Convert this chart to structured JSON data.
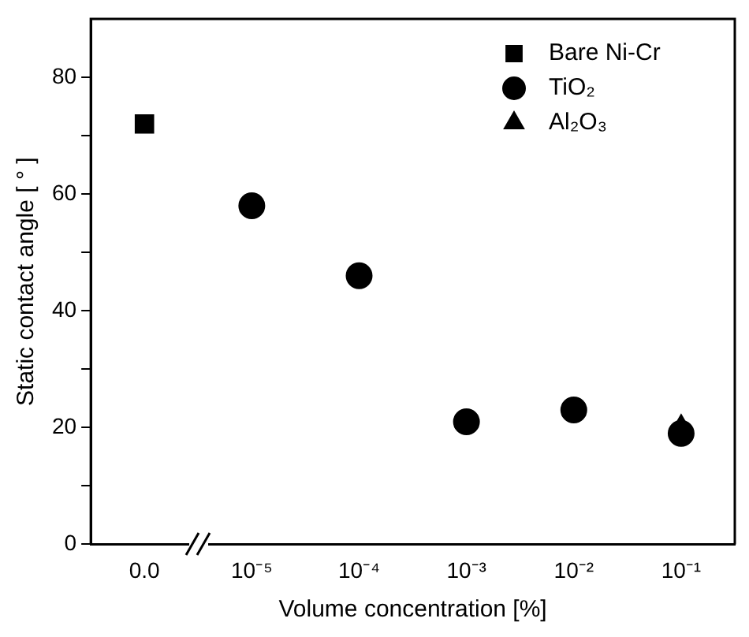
{
  "chart_data": {
    "type": "scatter",
    "xlabel": "Volume concentration [%]",
    "ylabel": "Static contact angle [ ° ]",
    "categories": [
      "0.0",
      "10⁻⁵",
      "10⁻⁴",
      "10⁻³",
      "10⁻²",
      "10⁻¹"
    ],
    "series": [
      {
        "name": "Bare Ni-Cr",
        "color": "#000000",
        "marker": "square",
        "values": [
          72,
          null,
          null,
          null,
          null,
          null
        ]
      },
      {
        "name": "TiO₂",
        "color": "#000000",
        "marker": "circle",
        "values": [
          null,
          58,
          46,
          21,
          23,
          19
        ]
      },
      {
        "name": "Al₂O₃",
        "color": "#000000",
        "marker": "triangle",
        "values": [
          null,
          null,
          null,
          null,
          null,
          20
        ]
      }
    ],
    "ylim": [
      0,
      90
    ],
    "yticks": [
      0,
      {
        "value": 10,
        "label": null
      },
      20,
      {
        "value": 30,
        "label": null
      },
      40,
      {
        "value": 50,
        "label": null
      },
      60,
      {
        "value": 70,
        "label": null
      },
      80
    ],
    "grid": false,
    "legend": "top right"
  }
}
